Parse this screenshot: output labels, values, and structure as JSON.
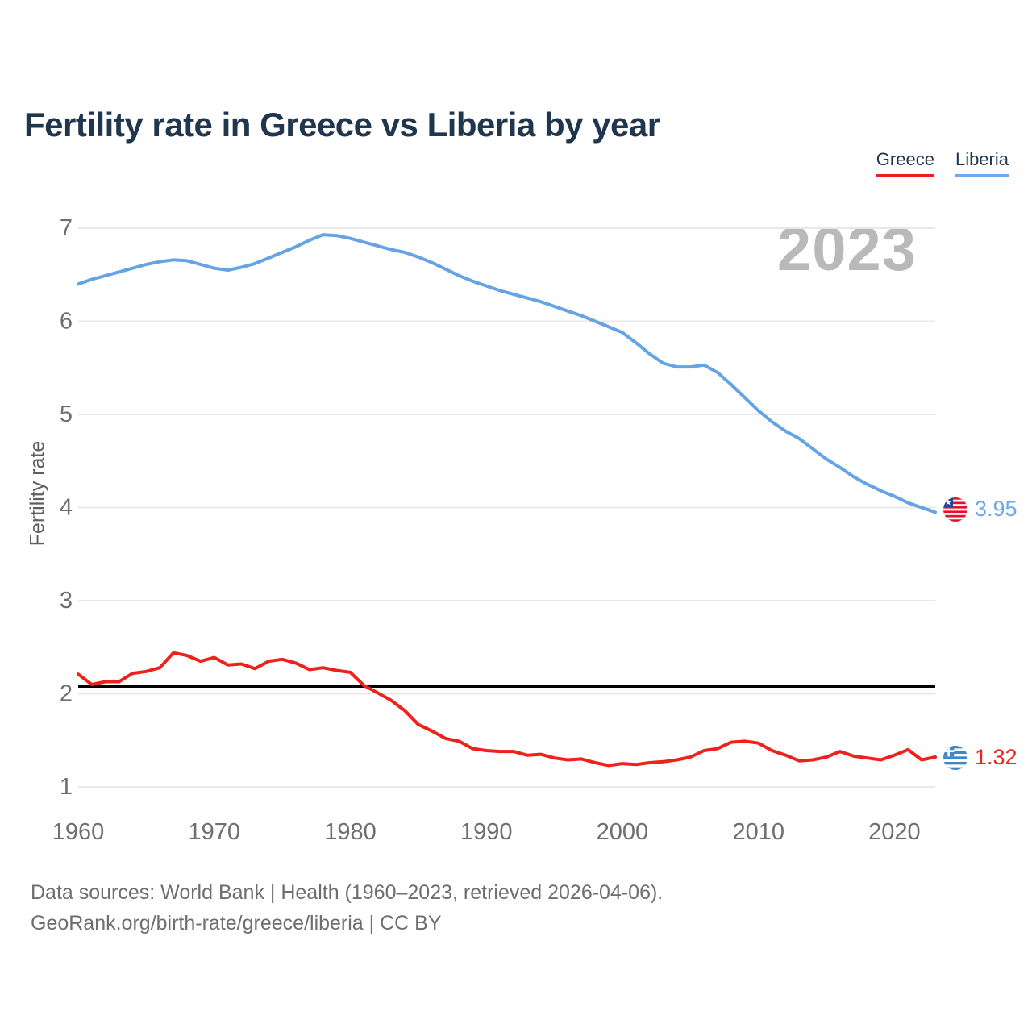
{
  "title": "Fertility rate in Greece vs Liberia by year",
  "legend": {
    "items": [
      {
        "label": "Greece",
        "color": "#f01d1d"
      },
      {
        "label": "Liberia",
        "color": "#6aabe8"
      }
    ]
  },
  "watermark_year": "2023",
  "chart_data": {
    "type": "line",
    "title": "Fertility rate in Greece vs Liberia by year",
    "xlabel": "",
    "ylabel": "Fertility rate",
    "ylim": [
      1,
      7
    ],
    "yticks": [
      1,
      2,
      3,
      4,
      5,
      6,
      7
    ],
    "xticks": [
      1960,
      1970,
      1980,
      1990,
      2000,
      2010,
      2020
    ],
    "grid": true,
    "gridline_color": "#e8e8e8",
    "tick_color": "#6f6f6f",
    "reference_line": {
      "value": 2.08,
      "color": "#000000"
    },
    "x": [
      1960,
      1961,
      1962,
      1963,
      1964,
      1965,
      1966,
      1967,
      1968,
      1969,
      1970,
      1971,
      1972,
      1973,
      1974,
      1975,
      1976,
      1977,
      1978,
      1979,
      1980,
      1981,
      1982,
      1983,
      1984,
      1985,
      1986,
      1987,
      1988,
      1989,
      1990,
      1991,
      1992,
      1993,
      1994,
      1995,
      1996,
      1997,
      1998,
      1999,
      2000,
      2001,
      2002,
      2003,
      2004,
      2005,
      2006,
      2007,
      2008,
      2009,
      2010,
      2011,
      2012,
      2013,
      2014,
      2015,
      2016,
      2017,
      2018,
      2019,
      2020,
      2021,
      2022,
      2023
    ],
    "series": [
      {
        "name": "Liberia",
        "color": "#64a4e4",
        "values": [
          6.4,
          6.45,
          6.49,
          6.53,
          6.57,
          6.61,
          6.64,
          6.66,
          6.65,
          6.61,
          6.57,
          6.55,
          6.58,
          6.62,
          6.68,
          6.74,
          6.8,
          6.87,
          6.93,
          6.92,
          6.89,
          6.85,
          6.81,
          6.77,
          6.74,
          6.69,
          6.63,
          6.56,
          6.49,
          6.43,
          6.38,
          6.33,
          6.29,
          6.25,
          6.21,
          6.16,
          6.11,
          6.06,
          6.0,
          5.94,
          5.88,
          5.77,
          5.65,
          5.55,
          5.51,
          5.51,
          5.53,
          5.45,
          5.32,
          5.18,
          5.04,
          4.92,
          4.82,
          4.74,
          4.63,
          4.52,
          4.43,
          4.33,
          4.25,
          4.18,
          4.12,
          4.05,
          4.0,
          3.95
        ]
      },
      {
        "name": "Greece",
        "color": "#f0201a",
        "values": [
          2.21,
          2.1,
          2.13,
          2.13,
          2.22,
          2.24,
          2.28,
          2.44,
          2.41,
          2.35,
          2.39,
          2.31,
          2.32,
          2.27,
          2.35,
          2.37,
          2.33,
          2.26,
          2.28,
          2.25,
          2.23,
          2.09,
          2.01,
          1.93,
          1.82,
          1.67,
          1.6,
          1.52,
          1.49,
          1.41,
          1.39,
          1.38,
          1.38,
          1.34,
          1.35,
          1.31,
          1.29,
          1.3,
          1.26,
          1.23,
          1.25,
          1.24,
          1.26,
          1.27,
          1.29,
          1.32,
          1.39,
          1.41,
          1.48,
          1.49,
          1.47,
          1.39,
          1.34,
          1.28,
          1.29,
          1.32,
          1.38,
          1.33,
          1.31,
          1.29,
          1.34,
          1.4,
          1.29,
          1.32
        ]
      }
    ],
    "end_labels": [
      {
        "series": "Liberia",
        "value": "3.95",
        "color": "#70a9e6",
        "flag": "liberia-flag"
      },
      {
        "series": "Greece",
        "value": "1.32",
        "color": "#e8281e",
        "flag": "greece-flag"
      }
    ],
    "legend_position": "top-right"
  },
  "footer": {
    "line1": "Data sources: World Bank | Health (1960–2023, retrieved 2026-04-06).",
    "line2": "GeoRank.org/birth-rate/greece/liberia | CC BY"
  }
}
